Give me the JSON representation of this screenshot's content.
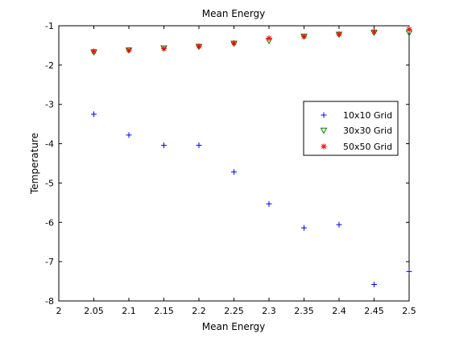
{
  "chart_data": {
    "type": "scatter",
    "title": "Mean Energy",
    "xlabel": "Mean Energy",
    "ylabel": "Temperature",
    "xlim": [
      2,
      2.5
    ],
    "ylim": [
      -8,
      -1
    ],
    "xticks": [
      2,
      2.05,
      2.1,
      2.15,
      2.2,
      2.25,
      2.3,
      2.35,
      2.4,
      2.45,
      2.5
    ],
    "xtick_labels": [
      "2",
      "2.05",
      "2.1",
      "2.15",
      "2.2",
      "2.25",
      "2.3",
      "2.35",
      "2.4",
      "2.45",
      "2.5"
    ],
    "yticks": [
      -8,
      -7,
      -6,
      -5,
      -4,
      -3,
      -2,
      -1
    ],
    "ytick_labels": [
      "-8",
      "-7",
      "-6",
      "-5",
      "-4",
      "-3",
      "-2",
      "-1"
    ],
    "grid": false,
    "legend_position": "right",
    "series": [
      {
        "name": "10x10 Grid",
        "marker": "plus",
        "color": "#0000ff",
        "x": [
          2.05,
          2.1,
          2.15,
          2.2,
          2.25,
          2.3,
          2.35,
          2.4,
          2.45,
          2.5
        ],
        "y": [
          -3.25,
          -3.78,
          -4.04,
          -4.04,
          -4.72,
          -5.53,
          -6.14,
          -6.06,
          -7.58,
          -7.25
        ]
      },
      {
        "name": "30x30 Grid",
        "marker": "triangle-down",
        "color": "#008000",
        "x": [
          2.05,
          2.1,
          2.15,
          2.2,
          2.25,
          2.3,
          2.35,
          2.4,
          2.45,
          2.5
        ],
        "y": [
          -1.67,
          -1.62,
          -1.57,
          -1.53,
          -1.45,
          -1.38,
          -1.27,
          -1.22,
          -1.17,
          -1.18
        ]
      },
      {
        "name": "50x50 Grid",
        "marker": "asterisk",
        "color": "#ff0000",
        "x": [
          2.05,
          2.1,
          2.15,
          2.2,
          2.25,
          2.3,
          2.35,
          2.4,
          2.45,
          2.5
        ],
        "y": [
          -1.65,
          -1.62,
          -1.58,
          -1.52,
          -1.44,
          -1.32,
          -1.27,
          -1.21,
          -1.15,
          -1.09
        ]
      }
    ]
  }
}
